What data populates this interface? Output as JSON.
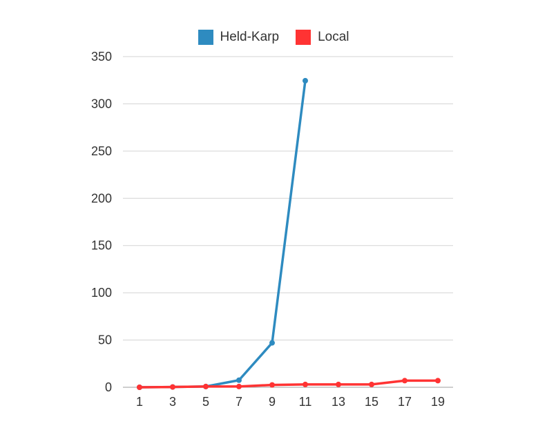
{
  "chart_data": {
    "type": "line",
    "title": "",
    "xlabel": "",
    "ylabel": "",
    "x": [
      1,
      3,
      5,
      7,
      9,
      11,
      13,
      15,
      17,
      19
    ],
    "ylim": [
      0,
      350
    ],
    "yticks": [
      0,
      50,
      100,
      150,
      200,
      250,
      300,
      350
    ],
    "grid": true,
    "legend_position": "top-center",
    "series": [
      {
        "name": "Held-Karp",
        "color": "#2e8bc0",
        "values": [
          0,
          0.3,
          0.8,
          7.5,
          47,
          324.5,
          null,
          null,
          null,
          null
        ]
      },
      {
        "name": "Local",
        "color": "#ff3333",
        "values": [
          0,
          0.3,
          0.8,
          0.8,
          2.5,
          3,
          3,
          3,
          7,
          7
        ]
      }
    ]
  }
}
